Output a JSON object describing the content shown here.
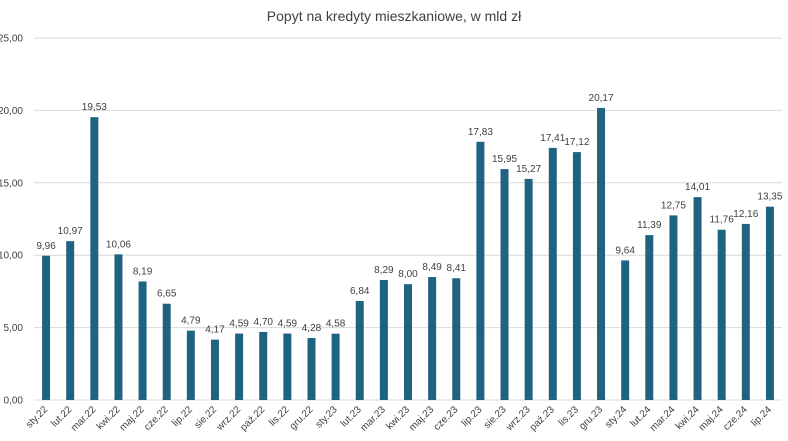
{
  "chart_data": {
    "type": "bar",
    "title": "Popyt na kredyty mieszkaniowe, w mld zł",
    "xlabel": "",
    "ylabel": "",
    "ylim": [
      0,
      25
    ],
    "y_ticks": [
      "0,00",
      "5,00",
      "10,00",
      "15,00",
      "20,00",
      "25,00"
    ],
    "grid": true,
    "bar_color": "#1f6382",
    "categories": [
      "sty.22",
      "lut.22",
      "mar.22",
      "kwi.22",
      "maj.22",
      "cze.22",
      "lip.22",
      "sie.22",
      "wrz.22",
      "paź.22",
      "lis.22",
      "gru.22",
      "sty.23",
      "lut.23",
      "mar.23",
      "kwi.23",
      "maj.23",
      "cze.23",
      "lip.23",
      "sie.23",
      "wrz.23",
      "paź.23",
      "lis.23",
      "gru.23",
      "sty.24",
      "lut.24",
      "mar.24",
      "kwi.24",
      "maj.24",
      "cze.24",
      "lip.24"
    ],
    "values": [
      9.96,
      10.97,
      19.53,
      10.06,
      8.19,
      6.65,
      4.79,
      4.17,
      4.59,
      4.7,
      4.59,
      4.28,
      4.58,
      6.84,
      8.29,
      8.0,
      8.49,
      8.41,
      17.83,
      15.95,
      15.27,
      17.41,
      17.12,
      20.17,
      9.64,
      11.39,
      12.75,
      14.01,
      11.76,
      12.16,
      13.35
    ],
    "value_labels": [
      "9,96",
      "10,97",
      "19,53",
      "10,06",
      "8,19",
      "6,65",
      "4,79",
      "4,17",
      "4,59",
      "4,70",
      "4,59",
      "4,28",
      "4,58",
      "6,84",
      "8,29",
      "8,00",
      "8,49",
      "8,41",
      "17,83",
      "15,95",
      "15,27",
      "17,41",
      "17,12",
      "20,17",
      "9,64",
      "11,39",
      "12,75",
      "14,01",
      "11,76",
      "12,16",
      "13,35"
    ]
  }
}
